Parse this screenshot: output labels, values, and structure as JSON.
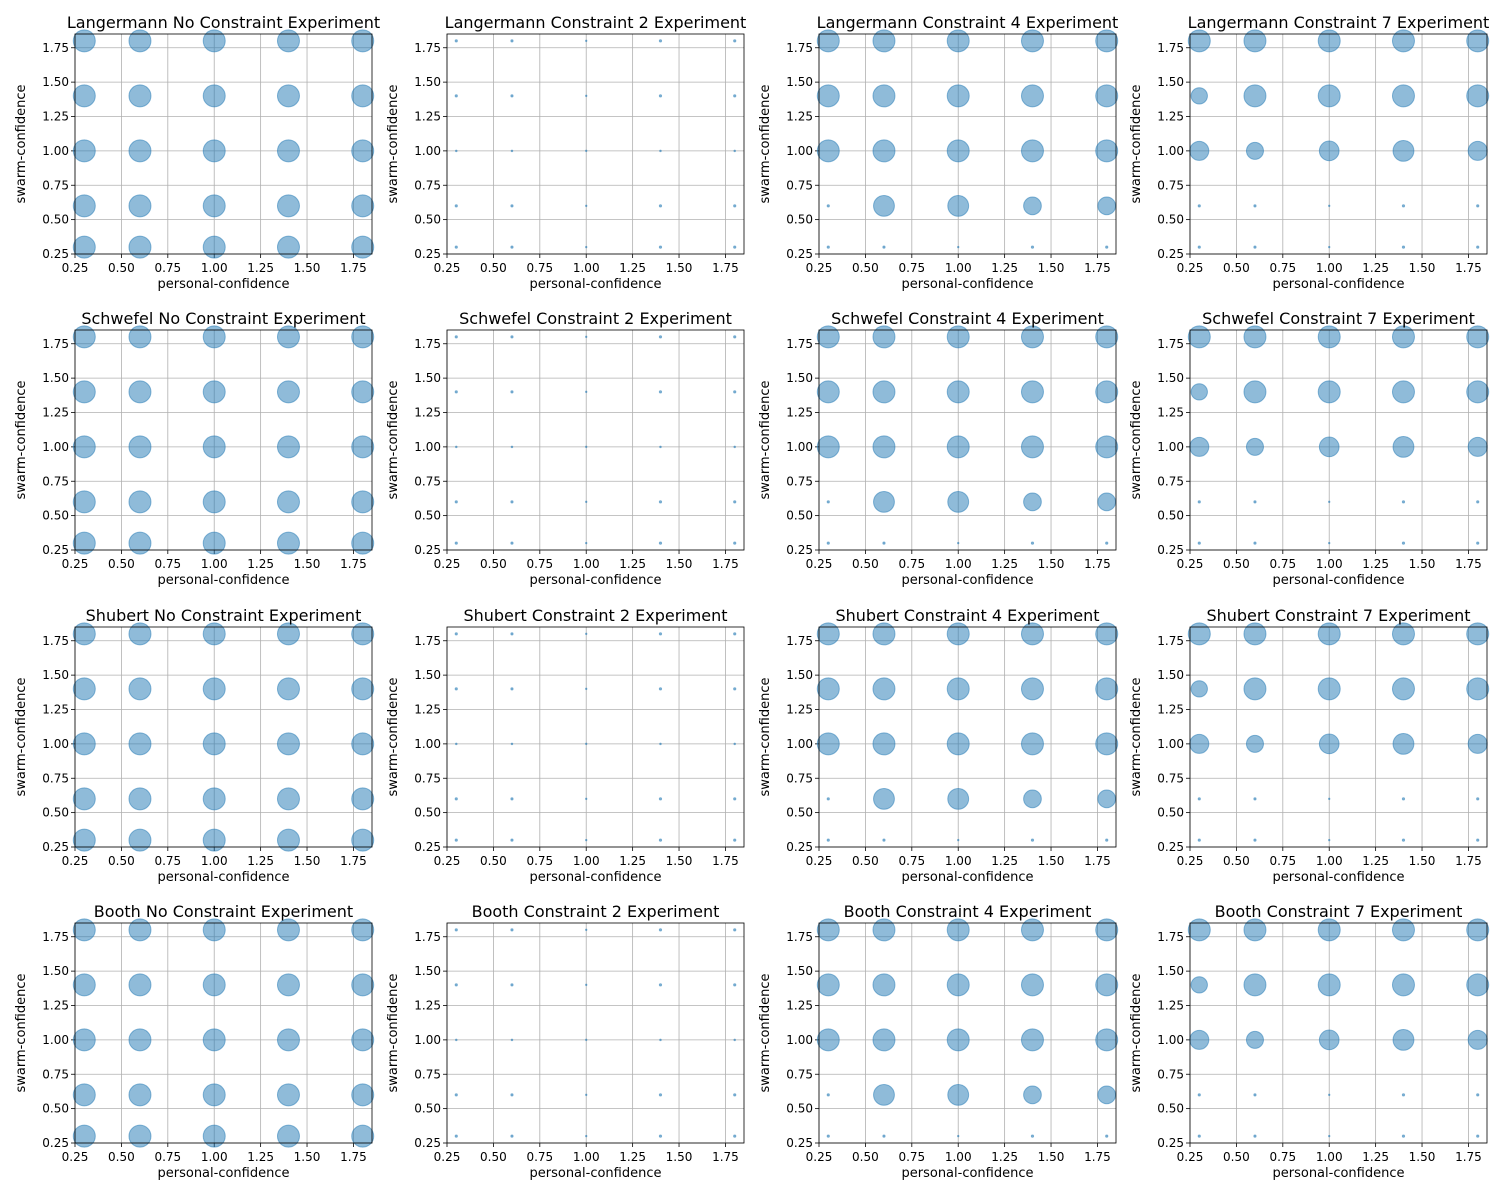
{
  "figure": {
    "background": "#ffffff",
    "marker_face": "#1f77b4",
    "marker_alpha": 0.5,
    "grid_color": "#b0b0b0"
  },
  "chart_data": [
    {
      "type": "scatter",
      "title": "Langermann No Constraint Experiment",
      "xlabel": "personal-confidence",
      "ylabel": "swarm-confidence",
      "xlim": [
        0.25,
        1.85
      ],
      "ylim": [
        0.25,
        1.85
      ],
      "xticks": [
        "0.25",
        "0.50",
        "0.75",
        "1.00",
        "1.25",
        "1.50",
        "1.75"
      ],
      "yticks": [
        "0.25",
        "0.50",
        "0.75",
        "1.00",
        "1.25",
        "1.50",
        "1.75"
      ],
      "grid": true,
      "x": [
        0.3,
        0.6,
        1.0,
        1.4,
        1.8
      ],
      "y": [
        1.8,
        1.4,
        1.0,
        0.6,
        0.3
      ],
      "sizes": [
        [
          1,
          1,
          1,
          1,
          1
        ],
        [
          1,
          1,
          1,
          1,
          1
        ],
        [
          1,
          1,
          1,
          1,
          1
        ],
        [
          1,
          1,
          1,
          1,
          1
        ],
        [
          1,
          1,
          1,
          1,
          1
        ]
      ]
    },
    {
      "type": "scatter",
      "title": "Langermann Constraint 2 Experiment",
      "xlabel": "personal-confidence",
      "ylabel": "swarm-confidence",
      "xlim": [
        0.25,
        1.85
      ],
      "ylim": [
        0.25,
        1.85
      ],
      "xticks": [
        "0.25",
        "0.50",
        "0.75",
        "1.00",
        "1.25",
        "1.50",
        "1.75"
      ],
      "yticks": [
        "0.25",
        "0.50",
        "0.75",
        "1.00",
        "1.25",
        "1.50",
        "1.75"
      ],
      "grid": true,
      "x": [
        0.3,
        0.6,
        1.0,
        1.4,
        1.8
      ],
      "y": [
        1.8,
        1.4,
        1.0,
        0.6,
        0.3
      ],
      "sizes": [
        [
          0.01,
          0.01,
          0.003,
          0.01,
          0.01
        ],
        [
          0.01,
          0.01,
          0.003,
          0.01,
          0.01
        ],
        [
          0.005,
          0.005,
          0.002,
          0.005,
          0.005
        ],
        [
          0.01,
          0.01,
          0.003,
          0.01,
          0.01
        ],
        [
          0.01,
          0.01,
          0.003,
          0.01,
          0.01
        ]
      ]
    },
    {
      "type": "scatter",
      "title": "Langermann Constraint 4 Experiment",
      "xlabel": "personal-confidence",
      "ylabel": "swarm-confidence",
      "xlim": [
        0.25,
        1.85
      ],
      "ylim": [
        0.25,
        1.85
      ],
      "xticks": [
        "0.25",
        "0.50",
        "0.75",
        "1.00",
        "1.25",
        "1.50",
        "1.75"
      ],
      "yticks": [
        "0.25",
        "0.50",
        "0.75",
        "1.00",
        "1.25",
        "1.50",
        "1.75"
      ],
      "grid": true,
      "x": [
        0.3,
        0.6,
        1.0,
        1.4,
        1.8
      ],
      "y": [
        1.8,
        1.4,
        1.0,
        0.6,
        0.3
      ],
      "sizes": [
        [
          1,
          1,
          1,
          1,
          1
        ],
        [
          1,
          1,
          1,
          1,
          1
        ],
        [
          1,
          1,
          1,
          1,
          1
        ],
        [
          0.01,
          0.9,
          0.9,
          0.65,
          0.65
        ],
        [
          0.01,
          0.01,
          0.003,
          0.01,
          0.01
        ]
      ]
    },
    {
      "type": "scatter",
      "title": "Langermann Constraint 7 Experiment",
      "xlabel": "personal-confidence",
      "ylabel": "swarm-confidence",
      "xlim": [
        0.25,
        1.85
      ],
      "ylim": [
        0.25,
        1.85
      ],
      "xticks": [
        "0.25",
        "0.50",
        "0.75",
        "1.00",
        "1.25",
        "1.50",
        "1.75"
      ],
      "yticks": [
        "0.25",
        "0.50",
        "0.75",
        "1.00",
        "1.25",
        "1.50",
        "1.75"
      ],
      "grid": true,
      "x": [
        0.3,
        0.6,
        1.0,
        1.4,
        1.8
      ],
      "y": [
        1.8,
        1.4,
        1.0,
        0.6,
        0.3
      ],
      "sizes": [
        [
          1,
          1,
          1,
          1,
          1
        ],
        [
          0.55,
          1,
          1,
          1,
          1
        ],
        [
          0.75,
          0.6,
          0.8,
          0.9,
          0.75
        ],
        [
          0.01,
          0.01,
          0.003,
          0.01,
          0.01
        ],
        [
          0.01,
          0.01,
          0.003,
          0.01,
          0.01
        ]
      ]
    },
    {
      "type": "scatter",
      "title": "Schwefel No Constraint Experiment",
      "xlabel": "personal-confidence",
      "ylabel": "swarm-confidence",
      "xlim": [
        0.25,
        1.85
      ],
      "ylim": [
        0.25,
        1.85
      ],
      "xticks": [
        "0.25",
        "0.50",
        "0.75",
        "1.00",
        "1.25",
        "1.50",
        "1.75"
      ],
      "yticks": [
        "0.25",
        "0.50",
        "0.75",
        "1.00",
        "1.25",
        "1.50",
        "1.75"
      ],
      "grid": true,
      "x": [
        0.3,
        0.6,
        1.0,
        1.4,
        1.8
      ],
      "y": [
        1.8,
        1.4,
        1.0,
        0.6,
        0.3
      ],
      "sizes": [
        [
          1,
          1,
          1,
          1,
          1
        ],
        [
          1,
          1,
          1,
          1,
          1
        ],
        [
          1,
          1,
          1,
          1,
          1
        ],
        [
          1,
          1,
          1,
          1,
          1
        ],
        [
          1,
          1,
          1,
          1,
          1
        ]
      ]
    },
    {
      "type": "scatter",
      "title": "Schwefel Constraint 2 Experiment",
      "xlabel": "personal-confidence",
      "ylabel": "swarm-confidence",
      "xlim": [
        0.25,
        1.85
      ],
      "ylim": [
        0.25,
        1.85
      ],
      "xticks": [
        "0.25",
        "0.50",
        "0.75",
        "1.00",
        "1.25",
        "1.50",
        "1.75"
      ],
      "yticks": [
        "0.25",
        "0.50",
        "0.75",
        "1.00",
        "1.25",
        "1.50",
        "1.75"
      ],
      "grid": true,
      "x": [
        0.3,
        0.6,
        1.0,
        1.4,
        1.8
      ],
      "y": [
        1.8,
        1.4,
        1.0,
        0.6,
        0.3
      ],
      "sizes": [
        [
          0.01,
          0.01,
          0.003,
          0.01,
          0.01
        ],
        [
          0.01,
          0.01,
          0.003,
          0.01,
          0.01
        ],
        [
          0.005,
          0.005,
          0.002,
          0.005,
          0.005
        ],
        [
          0.01,
          0.01,
          0.003,
          0.01,
          0.01
        ],
        [
          0.01,
          0.01,
          0.003,
          0.01,
          0.01
        ]
      ]
    },
    {
      "type": "scatter",
      "title": "Schwefel Constraint 4 Experiment",
      "xlabel": "personal-confidence",
      "ylabel": "swarm-confidence",
      "xlim": [
        0.25,
        1.85
      ],
      "ylim": [
        0.25,
        1.85
      ],
      "xticks": [
        "0.25",
        "0.50",
        "0.75",
        "1.00",
        "1.25",
        "1.50",
        "1.75"
      ],
      "yticks": [
        "0.25",
        "0.50",
        "0.75",
        "1.00",
        "1.25",
        "1.50",
        "1.75"
      ],
      "grid": true,
      "x": [
        0.3,
        0.6,
        1.0,
        1.4,
        1.8
      ],
      "y": [
        1.8,
        1.4,
        1.0,
        0.6,
        0.3
      ],
      "sizes": [
        [
          1,
          1,
          1,
          1,
          1
        ],
        [
          1,
          1,
          1,
          1,
          1
        ],
        [
          1,
          1,
          1,
          1,
          1
        ],
        [
          0.01,
          0.9,
          0.9,
          0.65,
          0.65
        ],
        [
          0.01,
          0.01,
          0.003,
          0.01,
          0.01
        ]
      ]
    },
    {
      "type": "scatter",
      "title": "Schwefel Constraint 7 Experiment",
      "xlabel": "personal-confidence",
      "ylabel": "swarm-confidence",
      "xlim": [
        0.25,
        1.85
      ],
      "ylim": [
        0.25,
        1.85
      ],
      "xticks": [
        "0.25",
        "0.50",
        "0.75",
        "1.00",
        "1.25",
        "1.50",
        "1.75"
      ],
      "yticks": [
        "0.25",
        "0.50",
        "0.75",
        "1.00",
        "1.25",
        "1.50",
        "1.75"
      ],
      "grid": true,
      "x": [
        0.3,
        0.6,
        1.0,
        1.4,
        1.8
      ],
      "y": [
        1.8,
        1.4,
        1.0,
        0.6,
        0.3
      ],
      "sizes": [
        [
          1,
          1,
          1,
          1,
          1
        ],
        [
          0.55,
          1,
          1,
          1,
          1
        ],
        [
          0.75,
          0.6,
          0.8,
          0.9,
          0.75
        ],
        [
          0.01,
          0.01,
          0.003,
          0.01,
          0.01
        ],
        [
          0.01,
          0.01,
          0.003,
          0.01,
          0.01
        ]
      ]
    },
    {
      "type": "scatter",
      "title": "Shubert No Constraint Experiment",
      "xlabel": "personal-confidence",
      "ylabel": "swarm-confidence",
      "xlim": [
        0.25,
        1.85
      ],
      "ylim": [
        0.25,
        1.85
      ],
      "xticks": [
        "0.25",
        "0.50",
        "0.75",
        "1.00",
        "1.25",
        "1.50",
        "1.75"
      ],
      "yticks": [
        "0.25",
        "0.50",
        "0.75",
        "1.00",
        "1.25",
        "1.50",
        "1.75"
      ],
      "grid": true,
      "x": [
        0.3,
        0.6,
        1.0,
        1.4,
        1.8
      ],
      "y": [
        1.8,
        1.4,
        1.0,
        0.6,
        0.3
      ],
      "sizes": [
        [
          1,
          1,
          1,
          1,
          1
        ],
        [
          1,
          1,
          1,
          1,
          1
        ],
        [
          1,
          1,
          1,
          1,
          1
        ],
        [
          1,
          1,
          1,
          1,
          1
        ],
        [
          1,
          1,
          1,
          1,
          1
        ]
      ]
    },
    {
      "type": "scatter",
      "title": "Shubert Constraint 2 Experiment",
      "xlabel": "personal-confidence",
      "ylabel": "swarm-confidence",
      "xlim": [
        0.25,
        1.85
      ],
      "ylim": [
        0.25,
        1.85
      ],
      "xticks": [
        "0.25",
        "0.50",
        "0.75",
        "1.00",
        "1.25",
        "1.50",
        "1.75"
      ],
      "yticks": [
        "0.25",
        "0.50",
        "0.75",
        "1.00",
        "1.25",
        "1.50",
        "1.75"
      ],
      "grid": true,
      "x": [
        0.3,
        0.6,
        1.0,
        1.4,
        1.8
      ],
      "y": [
        1.8,
        1.4,
        1.0,
        0.6,
        0.3
      ],
      "sizes": [
        [
          0.01,
          0.01,
          0.003,
          0.01,
          0.01
        ],
        [
          0.01,
          0.01,
          0.003,
          0.01,
          0.01
        ],
        [
          0.005,
          0.005,
          0.002,
          0.005,
          0.005
        ],
        [
          0.01,
          0.01,
          0.003,
          0.01,
          0.01
        ],
        [
          0.01,
          0.01,
          0.003,
          0.01,
          0.01
        ]
      ]
    },
    {
      "type": "scatter",
      "title": "Shubert Constraint 4 Experiment",
      "xlabel": "personal-confidence",
      "ylabel": "swarm-confidence",
      "xlim": [
        0.25,
        1.85
      ],
      "ylim": [
        0.25,
        1.85
      ],
      "xticks": [
        "0.25",
        "0.50",
        "0.75",
        "1.00",
        "1.25",
        "1.50",
        "1.75"
      ],
      "yticks": [
        "0.25",
        "0.50",
        "0.75",
        "1.00",
        "1.25",
        "1.50",
        "1.75"
      ],
      "grid": true,
      "x": [
        0.3,
        0.6,
        1.0,
        1.4,
        1.8
      ],
      "y": [
        1.8,
        1.4,
        1.0,
        0.6,
        0.3
      ],
      "sizes": [
        [
          1,
          1,
          1,
          1,
          1
        ],
        [
          1,
          1,
          1,
          1,
          1
        ],
        [
          1,
          1,
          1,
          1,
          1
        ],
        [
          0.01,
          0.9,
          0.9,
          0.65,
          0.65
        ],
        [
          0.01,
          0.01,
          0.003,
          0.01,
          0.01
        ]
      ]
    },
    {
      "type": "scatter",
      "title": "Shubert Constraint 7 Experiment",
      "xlabel": "personal-confidence",
      "ylabel": "swarm-confidence",
      "xlim": [
        0.25,
        1.85
      ],
      "ylim": [
        0.25,
        1.85
      ],
      "xticks": [
        "0.25",
        "0.50",
        "0.75",
        "1.00",
        "1.25",
        "1.50",
        "1.75"
      ],
      "yticks": [
        "0.25",
        "0.50",
        "0.75",
        "1.00",
        "1.25",
        "1.50",
        "1.75"
      ],
      "grid": true,
      "x": [
        0.3,
        0.6,
        1.0,
        1.4,
        1.8
      ],
      "y": [
        1.8,
        1.4,
        1.0,
        0.6,
        0.3
      ],
      "sizes": [
        [
          1,
          1,
          1,
          1,
          1
        ],
        [
          0.55,
          1,
          1,
          1,
          1
        ],
        [
          0.75,
          0.6,
          0.8,
          0.9,
          0.75
        ],
        [
          0.01,
          0.01,
          0.003,
          0.01,
          0.01
        ],
        [
          0.01,
          0.01,
          0.003,
          0.01,
          0.01
        ]
      ]
    },
    {
      "type": "scatter",
      "title": "Booth No Constraint Experiment",
      "xlabel": "personal-confidence",
      "ylabel": "swarm-confidence",
      "xlim": [
        0.25,
        1.85
      ],
      "ylim": [
        0.25,
        1.85
      ],
      "xticks": [
        "0.25",
        "0.50",
        "0.75",
        "1.00",
        "1.25",
        "1.50",
        "1.75"
      ],
      "yticks": [
        "0.25",
        "0.50",
        "0.75",
        "1.00",
        "1.25",
        "1.50",
        "1.75"
      ],
      "grid": true,
      "x": [
        0.3,
        0.6,
        1.0,
        1.4,
        1.8
      ],
      "y": [
        1.8,
        1.4,
        1.0,
        0.6,
        0.3
      ],
      "sizes": [
        [
          1,
          1,
          1,
          1,
          1
        ],
        [
          1,
          1,
          1,
          1,
          1
        ],
        [
          1,
          1,
          1,
          1,
          1
        ],
        [
          1,
          1,
          1,
          1,
          1
        ],
        [
          1,
          1,
          1,
          1,
          1
        ]
      ]
    },
    {
      "type": "scatter",
      "title": "Booth Constraint 2 Experiment",
      "xlabel": "personal-confidence",
      "ylabel": "swarm-confidence",
      "xlim": [
        0.25,
        1.85
      ],
      "ylim": [
        0.25,
        1.85
      ],
      "xticks": [
        "0.25",
        "0.50",
        "0.75",
        "1.00",
        "1.25",
        "1.50",
        "1.75"
      ],
      "yticks": [
        "0.25",
        "0.50",
        "0.75",
        "1.00",
        "1.25",
        "1.50",
        "1.75"
      ],
      "grid": true,
      "x": [
        0.3,
        0.6,
        1.0,
        1.4,
        1.8
      ],
      "y": [
        1.8,
        1.4,
        1.0,
        0.6,
        0.3
      ],
      "sizes": [
        [
          0.01,
          0.01,
          0.003,
          0.01,
          0.01
        ],
        [
          0.01,
          0.01,
          0.003,
          0.01,
          0.01
        ],
        [
          0.005,
          0.005,
          0.002,
          0.005,
          0.005
        ],
        [
          0.01,
          0.01,
          0.003,
          0.01,
          0.01
        ],
        [
          0.01,
          0.01,
          0.003,
          0.01,
          0.01
        ]
      ]
    },
    {
      "type": "scatter",
      "title": "Booth Constraint 4 Experiment",
      "xlabel": "personal-confidence",
      "ylabel": "swarm-confidence",
      "xlim": [
        0.25,
        1.85
      ],
      "ylim": [
        0.25,
        1.85
      ],
      "xticks": [
        "0.25",
        "0.50",
        "0.75",
        "1.00",
        "1.25",
        "1.50",
        "1.75"
      ],
      "yticks": [
        "0.25",
        "0.50",
        "0.75",
        "1.00",
        "1.25",
        "1.50",
        "1.75"
      ],
      "grid": true,
      "x": [
        0.3,
        0.6,
        1.0,
        1.4,
        1.8
      ],
      "y": [
        1.8,
        1.4,
        1.0,
        0.6,
        0.3
      ],
      "sizes": [
        [
          1,
          1,
          1,
          1,
          1
        ],
        [
          1,
          1,
          1,
          1,
          1
        ],
        [
          1,
          1,
          1,
          1,
          1
        ],
        [
          0.01,
          0.9,
          0.9,
          0.65,
          0.65
        ],
        [
          0.01,
          0.01,
          0.003,
          0.01,
          0.01
        ]
      ]
    },
    {
      "type": "scatter",
      "title": "Booth Constraint 7 Experiment",
      "xlabel": "personal-confidence",
      "ylabel": "swarm-confidence",
      "xlim": [
        0.25,
        1.85
      ],
      "ylim": [
        0.25,
        1.85
      ],
      "xticks": [
        "0.25",
        "0.50",
        "0.75",
        "1.00",
        "1.25",
        "1.50",
        "1.75"
      ],
      "yticks": [
        "0.25",
        "0.50",
        "0.75",
        "1.00",
        "1.25",
        "1.50",
        "1.75"
      ],
      "grid": true,
      "x": [
        0.3,
        0.6,
        1.0,
        1.4,
        1.8
      ],
      "y": [
        1.8,
        1.4,
        1.0,
        0.6,
        0.3
      ],
      "sizes": [
        [
          1,
          1,
          1,
          1,
          1
        ],
        [
          0.55,
          1,
          1,
          1,
          1
        ],
        [
          0.75,
          0.6,
          0.8,
          0.9,
          0.75
        ],
        [
          0.01,
          0.01,
          0.003,
          0.01,
          0.01
        ],
        [
          0.01,
          0.01,
          0.003,
          0.01,
          0.01
        ]
      ]
    }
  ]
}
